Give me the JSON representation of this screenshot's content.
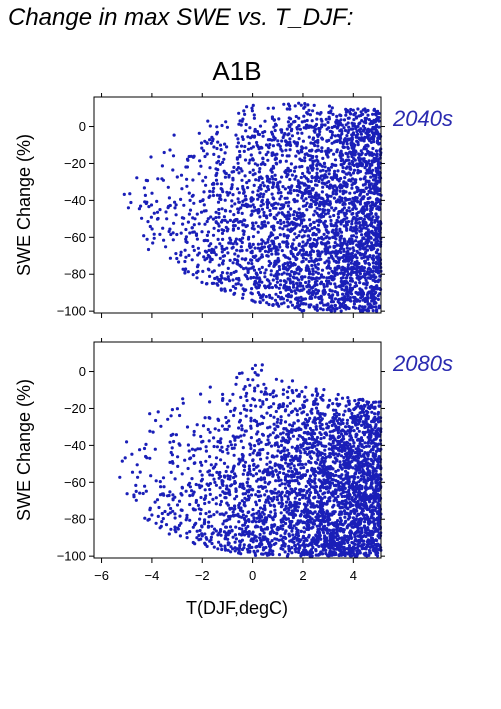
{
  "page": {
    "title": "Change in max SWE vs. T_DJF:"
  },
  "colors": {
    "points": "#1a1fb8",
    "period_label": "#2a2ab0",
    "axis": "#000000"
  },
  "chart_data": [
    {
      "type": "scatter",
      "scenario": "A1B",
      "period": "2040s",
      "ylabel": "SWE Change (%)",
      "xlabel": "",
      "xlim": [
        -6.3,
        5.1
      ],
      "ylim": [
        -101,
        16
      ],
      "xticks": [
        -6,
        -4,
        -2,
        0,
        2,
        4
      ],
      "yticks": [
        0,
        -20,
        -40,
        -60,
        -80,
        -100
      ],
      "x_tick_labels_shown": false,
      "point_cloud": {
        "n_points": 3200,
        "x_distribution": "skewed to warm end, densest between 1 and 5 degC",
        "y_range_by_x": [
          {
            "x": -6,
            "y": [
              -30,
              -5
            ]
          },
          {
            "x": -4,
            "y": [
              -70,
              -5
            ]
          },
          {
            "x": -2,
            "y": [
              -85,
              5
            ]
          },
          {
            "x": 0,
            "y": [
              -95,
              12
            ]
          },
          {
            "x": 2,
            "y": [
              -100,
              14
            ]
          },
          {
            "x": 4,
            "y": [
              -100,
              10
            ]
          }
        ],
        "trend": "SWE change becomes more negative as T_DJF increases"
      }
    },
    {
      "type": "scatter",
      "scenario": "A1B",
      "period": "2080s",
      "ylabel": "SWE Change (%)",
      "xlabel": "T(DJF,degC)",
      "xlim": [
        -6.3,
        5.1
      ],
      "ylim": [
        -101,
        16
      ],
      "xticks": [
        -6,
        -4,
        -2,
        0,
        2,
        4
      ],
      "yticks": [
        0,
        -20,
        -40,
        -60,
        -80,
        -100
      ],
      "x_tick_labels_shown": true,
      "point_cloud": {
        "n_points": 3200,
        "x_distribution": "skewed to warm end, densest between 1 and 5 degC",
        "y_range_by_x": [
          {
            "x": -6,
            "y": [
              -55,
              -20
            ]
          },
          {
            "x": -4,
            "y": [
              -85,
              -15
            ]
          },
          {
            "x": -2,
            "y": [
              -95,
              -5
            ]
          },
          {
            "x": 0,
            "y": [
              -100,
              8
            ]
          },
          {
            "x": 2,
            "y": [
              -100,
              -5
            ]
          },
          {
            "x": 4,
            "y": [
              -100,
              -15
            ]
          }
        ],
        "trend": "SWE change mostly -60 to -100% at warm temperatures"
      }
    }
  ]
}
